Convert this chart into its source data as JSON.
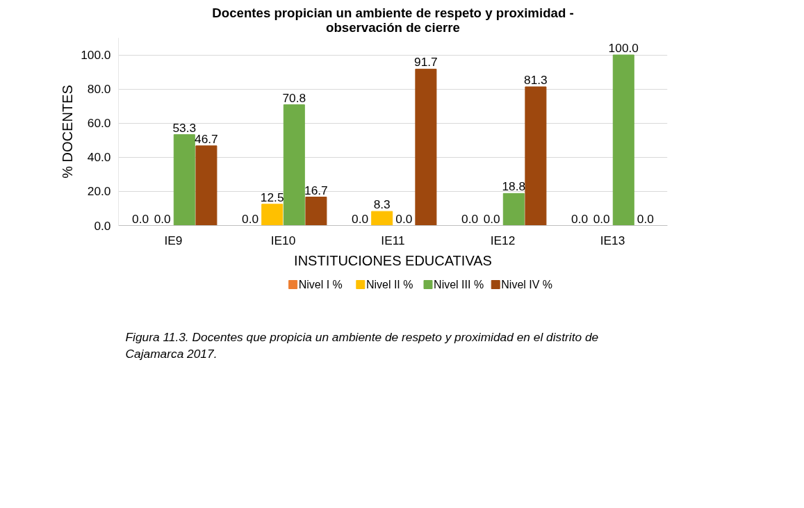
{
  "chart_data": {
    "type": "bar",
    "title": "Docentes propician un ambiente de respeto y proximidad - observación de cierre",
    "xlabel": "INSTITUCIONES EDUCATIVAS",
    "ylabel": "% DOCENTES",
    "categories": [
      "IE9",
      "IE10",
      "IE11",
      "IE12",
      "IE13"
    ],
    "series": [
      {
        "name": "Nivel  I  %",
        "color": "#ed7d31",
        "values": [
          0.0,
          0.0,
          0.0,
          0.0,
          0.0
        ],
        "value_labels": [
          "0.0",
          "0.0",
          "0.0",
          "0.0",
          "0.0"
        ]
      },
      {
        "name": "Nivel II  %",
        "color": "#ffc000",
        "values": [
          0.0,
          12.5,
          8.3,
          0.0,
          0.0
        ],
        "value_labels": [
          "0.0",
          "12.5",
          "8.3",
          "0.0",
          "0.0"
        ]
      },
      {
        "name": "Nivel  III %",
        "color": "#70ad47",
        "values": [
          53.3,
          70.8,
          0.0,
          18.8,
          100.0
        ],
        "value_labels": [
          "53.3",
          "70.8",
          "0.0",
          "18.8",
          "100.0"
        ]
      },
      {
        "name": "Nivel  IV %",
        "color": "#9e480e",
        "values": [
          46.7,
          16.7,
          91.7,
          81.3,
          0.0
        ],
        "value_labels": [
          "46.7",
          "16.7",
          "91.7",
          "81.3",
          "0.0"
        ]
      }
    ],
    "ylim": [
      0,
      110
    ],
    "yticks": [
      {
        "value": 0,
        "label": "0.0"
      },
      {
        "value": 20,
        "label": "20.0"
      },
      {
        "value": 40,
        "label": "40.0"
      },
      {
        "value": 60,
        "label": "60.0"
      },
      {
        "value": 80,
        "label": "80.0"
      },
      {
        "value": 100,
        "label": "100.0"
      }
    ],
    "grid": "y",
    "legend": "bottom",
    "annotations": [
      "Figura 11.3. Docentes que propicia un ambiente de respeto y proximidad en el distrito de Cajamarca 2017."
    ]
  }
}
